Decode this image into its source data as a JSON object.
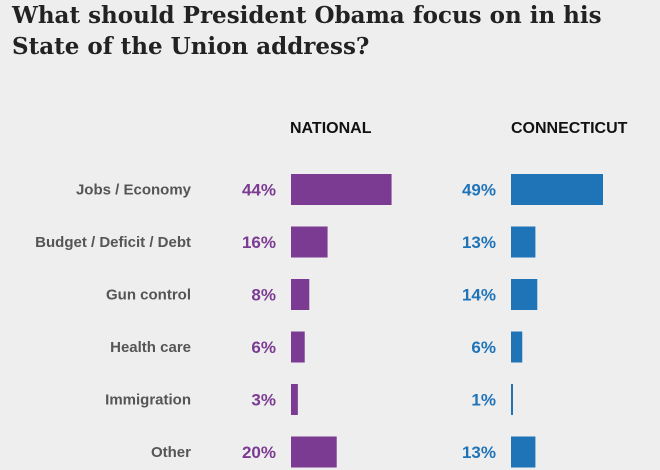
{
  "chart_data": {
    "type": "bar",
    "title": "What should President Obama focus on in his State of the Union address?",
    "categories": [
      "Jobs / Economy",
      "Budget / Deficit / Debt",
      "Gun control",
      "Health care",
      "Immigration",
      "Other"
    ],
    "series": [
      {
        "name": "NATIONAL",
        "values": [
          44,
          16,
          8,
          6,
          3,
          20
        ],
        "labels": [
          "44%",
          "16%",
          "8%",
          "6%",
          "3%",
          "20%"
        ],
        "color": "#7b3b92"
      },
      {
        "name": "CONNECTICUT",
        "values": [
          49,
          13,
          14,
          6,
          1,
          13
        ],
        "labels": [
          "49%",
          "13%",
          "14%",
          "6%",
          "1%",
          "13%"
        ],
        "color": "#1f74b8"
      }
    ],
    "xlim": [
      0,
      49
    ],
    "grid": false,
    "legend": "none"
  }
}
